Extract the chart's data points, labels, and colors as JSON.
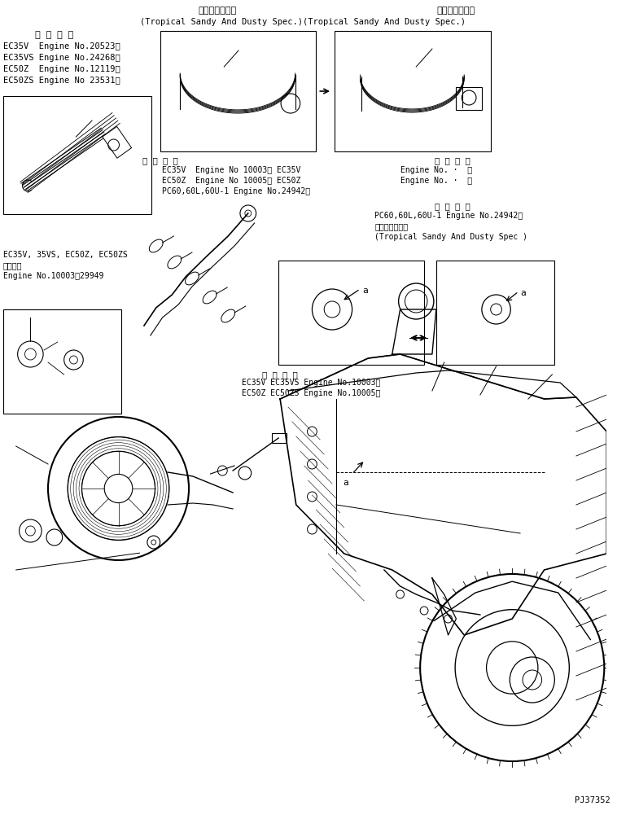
{
  "background_color": "#ffffff",
  "page_code": "PJ37352",
  "figsize": [
    7.58,
    10.01
  ],
  "dpi": 100,
  "top_text1_left": "熱帯砂塵地仕様",
  "top_text1_right": "熱帯砂塵地仕様",
  "top_text2": "(Tropical Sandy And Dusty Spec.)(Tropical Sandy And Dusty Spec.)",
  "label_tekiyo": "適 用 号 機",
  "label_tekiyo2": "適用号機",
  "block1_lines": [
    "適 用 号 機",
    "EC35V  Engine No.20523～",
    "EC35VS Engine No.24268～",
    "EC50Z  Engine No.12119～",
    "EC50ZS Engine No 23531～"
  ],
  "block2_lines": [
    "適 用 号 機",
    "EC35V  Engine No 10003～ EC35V",
    "EC50Z  Engine No 10005～ EC50Z",
    "PC60,60L,60U-1 Engine No.24942～"
  ],
  "block3_lines": [
    "適 用 号 機",
    "Engine No. ·  ～",
    "Engine No. ·  ～"
  ],
  "block4_lines": [
    "適 用 号 機",
    "PC60,60L,60U-1 Engine No.24942～",
    "熱帯砂塵地仕様",
    "(Tropical Sandy And Dusty Spec )"
  ],
  "block5_lines": [
    "EC35V, 35VS, EC50Z, EC50ZS",
    "適用号機",
    "Engine No.10003～29949"
  ],
  "block6_lines": [
    "適 用 号 機",
    "EC35V EC35VS Engine No.10003～",
    "EC50Z EC50ZS Engine No.10005～"
  ]
}
